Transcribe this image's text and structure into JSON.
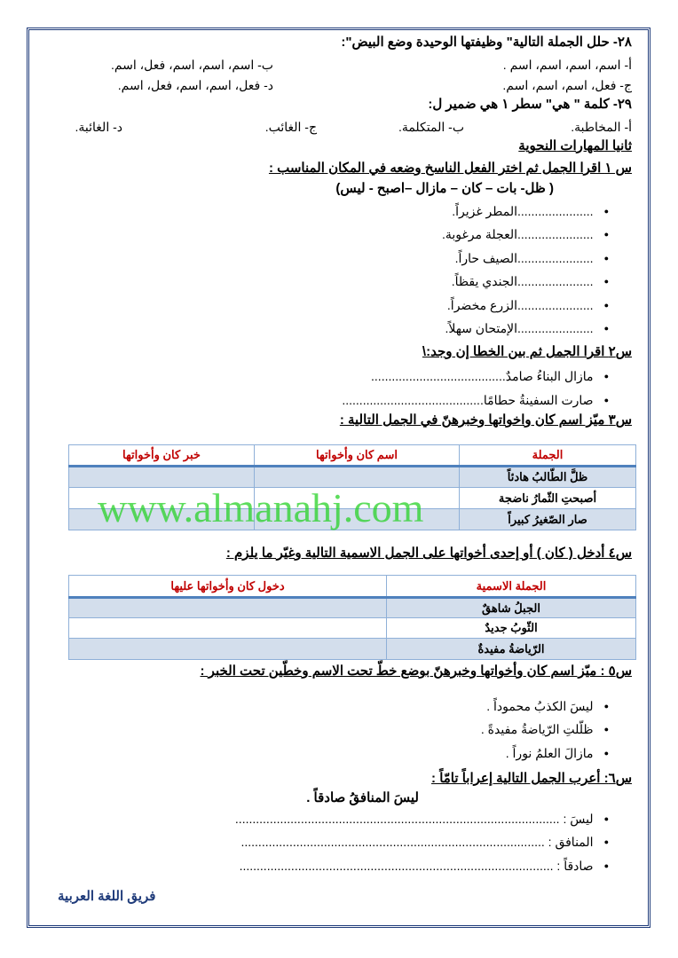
{
  "q28": {
    "title": "٢٨- حلل الجملة التالية\" وظيفتها الوحيدة وضع البيض\":",
    "options": [
      "أ- اسم، اسم، اسم، اسم .",
      "ب- اسم، اسم، اسم، فعل، اسم.",
      "ج- فعل، اسم، اسم، اسم.",
      "د- فعل، اسم، اسم، فعل، اسم."
    ]
  },
  "q29": {
    "title": "٢٩- كلمة \" هي\" سطر ١ هي ضمير ل:",
    "options": [
      "أ- المخاطبة.",
      "ب- المتكلمة.",
      "ج- الغائب.",
      "د- الغائبة."
    ]
  },
  "section_title": "ثانيا  المهارات النحوية",
  "s1": {
    "title": "س ١ اقرا الجمل ثم اختر الفعل الناسخ وضعه في المكان المناسب :",
    "choices": "( ظل- بات – كان – مازال –اصبح - ليس)",
    "items": [
      "......................المطر غزيراً.",
      "......................العجلة مرغوبة.",
      "......................الصيف حاراً.",
      "......................الجندي يقظاً.",
      "......................الزرع مخضراً.",
      "......................الإمتحان سهلاً."
    ]
  },
  "s2": {
    "title": "س٢ اقرا الجمل ثم بين الخطا إن وجد:\\",
    "items": [
      "مازال البناءُ صامدٌ.......................................",
      "صارت السفينةُ حطامًا........................................."
    ]
  },
  "s3": {
    "title": "س٣ ميّز اسم كان واخواتها وخبرهنّ في الجمل التالية :",
    "headers": [
      "الجملة",
      "اسم كان وأخواتها",
      "خبر كان وأخواتها"
    ],
    "rows": [
      [
        "ظلَّ الطّالبُ هادئاً",
        "",
        ""
      ],
      [
        "أصبحتِ الثّمارُ ناضجة",
        "",
        ""
      ],
      [
        "صار الصّغيرُ كبيراً",
        "",
        ""
      ]
    ]
  },
  "watermark": "www.almanahj.com",
  "s4": {
    "title": "س٤ أدخل ( كان ) أو إحدى أخواتها على الجمل الاسمية التالية وغيّر ما يلزم :",
    "headers": [
      "الجملة الاسمية",
      "دخول كان وأخواتها عليها"
    ],
    "rows": [
      [
        "الجبلُ شاهقٌ",
        ""
      ],
      [
        "الثّوبُ جديدٌ",
        ""
      ],
      [
        "الرّياضةُ مفيدةٌ",
        ""
      ]
    ]
  },
  "s5": {
    "title": "س٥ : ميّز اسم كان وأخواتها وخبرهنّ بوضع خطّ تحت الاسم وخطّين تحت الخبر :",
    "items": [
      "ليسَ الكذبُ محموداً .",
      "ظلّلتِ الرّياضةُ مفيدةً .",
      "مازالَ العلمُ نوراً ."
    ]
  },
  "s6": {
    "title": "س٦: أعرب الجمل التالية إعراباً تامّاً :",
    "sentence": "ليسَ المنافقُ صادقاً .",
    "items": [
      "ليسَ : ..............................................................................................",
      "المنافق : ........................................................................................",
      "صادقاً : ..........................................................................................."
    ]
  },
  "footer": "فريق اللغة العربية"
}
